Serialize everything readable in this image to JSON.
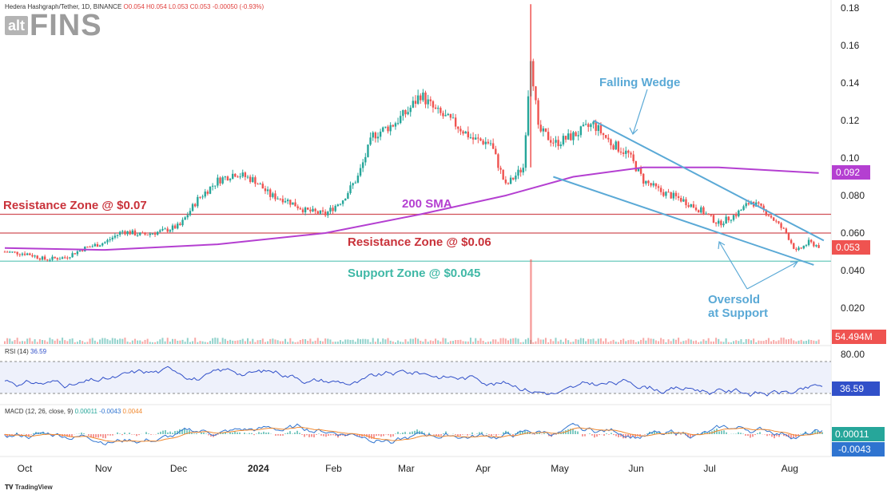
{
  "header": {
    "symbol_line": "Hedera Hashgraph/Tether, 1D, BINANCE",
    "ohlc": "O0.054 H0.054 L0.053 C0.053 -0.00050 (-0.93%)"
  },
  "logo": {
    "alt": "alt",
    "fins": "FINS"
  },
  "price_axis": {
    "ticks": [
      "0.18",
      "0.16",
      "0.14",
      "0.12",
      "0.10",
      "0.080",
      "0.060",
      "0.040",
      "0.020"
    ],
    "sma_badge": "0.092",
    "price_badge": "0.053",
    "volume_badge": "54.494M"
  },
  "annotations": {
    "falling_wedge": "Falling Wedge",
    "resistance_007": "Resistance Zone @ $0.07",
    "sma_label": "200 SMA",
    "resistance_006": "Resistance Zone @ $0.06",
    "support_0045": "Support Zone @ $0.045",
    "oversold_line1": "Oversold",
    "oversold_line2": "at Support"
  },
  "rsi": {
    "title": "RSI (14)",
    "value_text": "36.59",
    "axis_tick": "80.00",
    "badge": "36.59"
  },
  "macd": {
    "title": "MACD (12, 26, close, 9)",
    "v1": "0.00011",
    "v2": "-0.0043",
    "v3": "0.0044",
    "badge_hist": "0.00011",
    "badge_macd": "-0.0043"
  },
  "time_axis": [
    "Oct",
    "Nov",
    "Dec",
    "2024",
    "Feb",
    "Mar",
    "Apr",
    "May",
    "Jun",
    "Jul",
    "Aug"
  ],
  "footer": {
    "brand": "TradingView"
  },
  "colors": {
    "up": "#26a69a",
    "down": "#ef5350",
    "sma": "#b43fd1",
    "resistance": "#c9323a",
    "support": "#4fc0b0",
    "wedge": "#5aa9d6",
    "rsi": "#3150c9",
    "macd_line": "#2f74d0",
    "signal_line": "#f0882e"
  },
  "chart_data": {
    "type": "candlestick",
    "pair": "HBAR/USDT",
    "interval": "1D",
    "y_ticks": [
      0.02,
      0.04,
      0.06,
      0.08,
      0.1,
      0.12,
      0.14,
      0.16,
      0.18
    ],
    "price_series": [
      {
        "date": "2023-09-26",
        "price": 0.05
      },
      {
        "date": "2023-10-05",
        "price": 0.049
      },
      {
        "date": "2023-10-12",
        "price": 0.046
      },
      {
        "date": "2023-10-20",
        "price": 0.047
      },
      {
        "date": "2023-10-28",
        "price": 0.052
      },
      {
        "date": "2023-11-05",
        "price": 0.055
      },
      {
        "date": "2023-11-12",
        "price": 0.061
      },
      {
        "date": "2023-11-20",
        "price": 0.059
      },
      {
        "date": "2023-11-28",
        "price": 0.061
      },
      {
        "date": "2023-12-05",
        "price": 0.064
      },
      {
        "date": "2023-12-12",
        "price": 0.078
      },
      {
        "date": "2023-12-20",
        "price": 0.088
      },
      {
        "date": "2023-12-27",
        "price": 0.092
      },
      {
        "date": "2024-01-04",
        "price": 0.088
      },
      {
        "date": "2024-01-10",
        "price": 0.08
      },
      {
        "date": "2024-01-16",
        "price": 0.078
      },
      {
        "date": "2024-01-24",
        "price": 0.072
      },
      {
        "date": "2024-02-01",
        "price": 0.07
      },
      {
        "date": "2024-02-08",
        "price": 0.078
      },
      {
        "date": "2024-02-14",
        "price": 0.09
      },
      {
        "date": "2024-02-20",
        "price": 0.112
      },
      {
        "date": "2024-02-28",
        "price": 0.118
      },
      {
        "date": "2024-03-05",
        "price": 0.125
      },
      {
        "date": "2024-03-10",
        "price": 0.134
      },
      {
        "date": "2024-03-16",
        "price": 0.125
      },
      {
        "date": "2024-03-24",
        "price": 0.118
      },
      {
        "date": "2024-03-31",
        "price": 0.11
      },
      {
        "date": "2024-04-07",
        "price": 0.108
      },
      {
        "date": "2024-04-13",
        "price": 0.085
      },
      {
        "date": "2024-04-20",
        "price": 0.095
      },
      {
        "date": "2024-04-23",
        "price": 0.155
      },
      {
        "date": "2024-04-26",
        "price": 0.115
      },
      {
        "date": "2024-05-03",
        "price": 0.108
      },
      {
        "date": "2024-05-10",
        "price": 0.112
      },
      {
        "date": "2024-05-18",
        "price": 0.118
      },
      {
        "date": "2024-05-25",
        "price": 0.108
      },
      {
        "date": "2024-06-01",
        "price": 0.102
      },
      {
        "date": "2024-06-07",
        "price": 0.088
      },
      {
        "date": "2024-06-14",
        "price": 0.082
      },
      {
        "date": "2024-06-22",
        "price": 0.078
      },
      {
        "date": "2024-06-30",
        "price": 0.072
      },
      {
        "date": "2024-07-07",
        "price": 0.065
      },
      {
        "date": "2024-07-14",
        "price": 0.07
      },
      {
        "date": "2024-07-20",
        "price": 0.077
      },
      {
        "date": "2024-07-27",
        "price": 0.07
      },
      {
        "date": "2024-08-03",
        "price": 0.06
      },
      {
        "date": "2024-08-07",
        "price": 0.05
      },
      {
        "date": "2024-08-12",
        "price": 0.055
      },
      {
        "date": "2024-08-16",
        "price": 0.053
      }
    ],
    "sma200_series": [
      {
        "date": "2023-09-26",
        "value": 0.052
      },
      {
        "date": "2023-11-05",
        "value": 0.051
      },
      {
        "date": "2023-12-20",
        "value": 0.054
      },
      {
        "date": "2024-02-01",
        "value": 0.06
      },
      {
        "date": "2024-03-10",
        "value": 0.07
      },
      {
        "date": "2024-04-13",
        "value": 0.08
      },
      {
        "date": "2024-05-10",
        "value": 0.09
      },
      {
        "date": "2024-06-07",
        "value": 0.095
      },
      {
        "date": "2024-07-07",
        "value": 0.095
      },
      {
        "date": "2024-08-16",
        "value": 0.092
      }
    ],
    "horizontal_levels": [
      {
        "label": "Resistance Zone @ $0.07",
        "price": 0.07
      },
      {
        "label": "Resistance Zone @ $0.06",
        "price": 0.06
      },
      {
        "label": "Support Zone @ $0.045",
        "price": 0.045
      }
    ],
    "wedge_lines": [
      {
        "from": {
          "date": "2024-05-18",
          "price": 0.12
        },
        "to": {
          "date": "2024-08-18",
          "price": 0.056
        }
      },
      {
        "from": {
          "date": "2024-05-02",
          "price": 0.09
        },
        "to": {
          "date": "2024-08-14",
          "price": 0.043
        }
      }
    ],
    "last_price": 0.053,
    "sma200_last": 0.092,
    "volume_last": "54.494M",
    "rsi_last": 36.59,
    "macd_last": {
      "histogram": 0.00011,
      "macd": -0.0043,
      "signal": 0.0044
    }
  }
}
